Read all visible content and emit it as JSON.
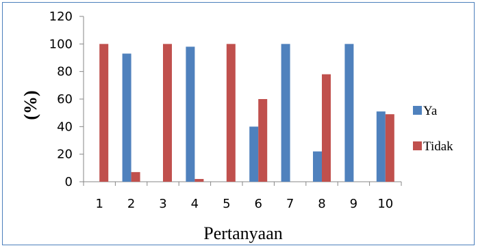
{
  "chart_data": {
    "type": "bar",
    "categories": [
      "1",
      "2",
      "3",
      "4",
      "5",
      "6",
      "7",
      "8",
      "9",
      "10"
    ],
    "series": [
      {
        "name": "Ya",
        "color": "#4f81bd",
        "values": [
          0,
          93,
          0,
          98,
          0,
          40,
          100,
          22,
          100,
          51
        ]
      },
      {
        "name": "Tidak",
        "color": "#c0504d",
        "values": [
          100,
          7,
          100,
          2,
          100,
          60,
          0,
          78,
          0,
          49
        ]
      }
    ],
    "xlabel": "Pertanyaan",
    "ylabel": "(%)",
    "ylim": [
      0,
      120
    ],
    "yticks": [
      0,
      20,
      40,
      60,
      80,
      100,
      120
    ],
    "grid": false,
    "legend_position": "right"
  }
}
